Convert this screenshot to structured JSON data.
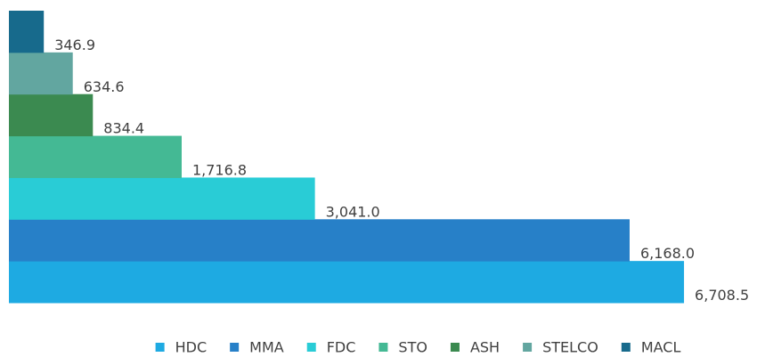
{
  "chart_data": {
    "type": "bar",
    "orientation": "horizontal",
    "categories": [
      "HDC",
      "MMA",
      "FDC",
      "STO",
      "ASH",
      "STELCO",
      "MACL"
    ],
    "values": [
      6708.5,
      6168.0,
      3041.0,
      1716.8,
      834.4,
      634.6,
      346.9
    ],
    "value_labels": [
      "6,708.5",
      "6,168.0",
      "3,041.0",
      "1,716.8",
      "834.4",
      "634.6",
      "346.9"
    ],
    "colors": [
      "#1eaae2",
      "#2780c8",
      "#29ccd6",
      "#44b994",
      "#3b8a50",
      "#62a6a0",
      "#176a8c"
    ],
    "xlim": [
      0,
      7000
    ],
    "legend": "bottom"
  }
}
